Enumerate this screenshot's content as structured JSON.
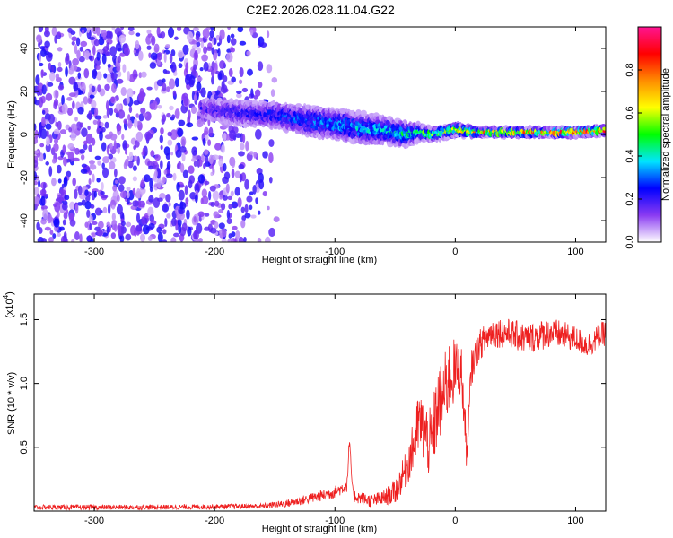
{
  "title": "C2E2.2026.028.11.04.G22",
  "chart_data": [
    {
      "type": "heatmap",
      "title": "C2E2.2026.028.11.04.G22",
      "xlabel": "Height of straight line (km)",
      "ylabel": "Frequency (Hz)",
      "xlim": [
        -350,
        125
      ],
      "ylim": [
        -50,
        50
      ],
      "xticks": [
        -300,
        -200,
        -100,
        0,
        100
      ],
      "yticks": [
        -40,
        -20,
        0,
        20,
        40
      ],
      "colorbar": {
        "label": "Normalized spectral amplitude",
        "range": [
          0,
          1
        ],
        "ticks": [
          0,
          0.2,
          0.4,
          0.6,
          0.8
        ],
        "tick_labels": [
          "0.0",
          "0.2",
          "0.4",
          "0.6",
          "0.8"
        ],
        "colormap": [
          "#ffffff",
          "#8a3bf2",
          "#0000ff",
          "#00e5ff",
          "#00ff00",
          "#ffff00",
          "#ff8c00",
          "#ff0000",
          "#ff1493"
        ]
      },
      "noise_region": {
        "x": [
          -350,
          -150
        ],
        "freq_band": [
          -50,
          50
        ],
        "typical_amplitude": 0.15
      },
      "ridge": {
        "x": [
          -210,
          -180,
          -150,
          -120,
          -100,
          -80,
          -60,
          -40,
          -30,
          -20,
          0,
          20,
          50,
          80,
          100,
          125
        ],
        "center_freq": [
          12,
          10,
          9,
          6,
          5,
          3,
          2,
          0,
          1,
          0,
          2,
          1,
          1,
          1,
          1,
          2
        ],
        "half_width": [
          6,
          7,
          7,
          8,
          8,
          8,
          7,
          6,
          4,
          3,
          3,
          2,
          2,
          2,
          2,
          2
        ],
        "peak_amplitude": [
          0.2,
          0.22,
          0.26,
          0.32,
          0.36,
          0.38,
          0.4,
          0.45,
          0.5,
          0.6,
          0.7,
          0.75,
          0.8,
          0.85,
          0.9,
          0.9
        ]
      },
      "grid": false
    },
    {
      "type": "line",
      "xlabel": "Height of straight line (km)",
      "ylabel": "SNR (10 * v/v)",
      "y_scale_label": "(x10",
      "y_scale_exp": "4",
      "xlim": [
        -350,
        125
      ],
      "ylim": [
        0,
        1.7
      ],
      "xticks": [
        -300,
        -200,
        -100,
        0,
        100
      ],
      "yticks": [
        0.5,
        1.0,
        1.5
      ],
      "ytick_labels": [
        "0.5",
        "1.0",
        "1.5"
      ],
      "color": "#ee2020",
      "series": [
        {
          "x": [
            -350,
            -300,
            -250,
            -200,
            -160,
            -140,
            -120,
            -100,
            -90,
            -88,
            -85,
            -70,
            -60,
            -50,
            -45,
            -40,
            -35,
            -30,
            -25,
            -20,
            -15,
            -10,
            -5,
            0,
            5,
            10,
            13,
            16,
            20,
            30,
            40,
            60,
            80,
            100,
            110,
            125
          ],
          "y": [
            0.03,
            0.03,
            0.03,
            0.035,
            0.04,
            0.06,
            0.1,
            0.15,
            0.2,
            0.55,
            0.12,
            0.08,
            0.1,
            0.15,
            0.25,
            0.35,
            0.5,
            0.7,
            0.6,
            0.5,
            0.8,
            0.9,
            1.05,
            1.1,
            1.1,
            0.4,
            1.1,
            1.2,
            1.3,
            1.4,
            1.4,
            1.35,
            1.4,
            1.35,
            1.3,
            1.4
          ],
          "noise": [
            0.02,
            0.02,
            0.02,
            0.02,
            0.02,
            0.03,
            0.04,
            0.05,
            0.05,
            0.05,
            0.05,
            0.05,
            0.06,
            0.1,
            0.12,
            0.15,
            0.2,
            0.25,
            0.25,
            0.3,
            0.3,
            0.3,
            0.3,
            0.25,
            0.2,
            0.15,
            0.15,
            0.12,
            0.12,
            0.12,
            0.12,
            0.12,
            0.12,
            0.1,
            0.1,
            0.1
          ]
        }
      ],
      "grid": false
    }
  ]
}
